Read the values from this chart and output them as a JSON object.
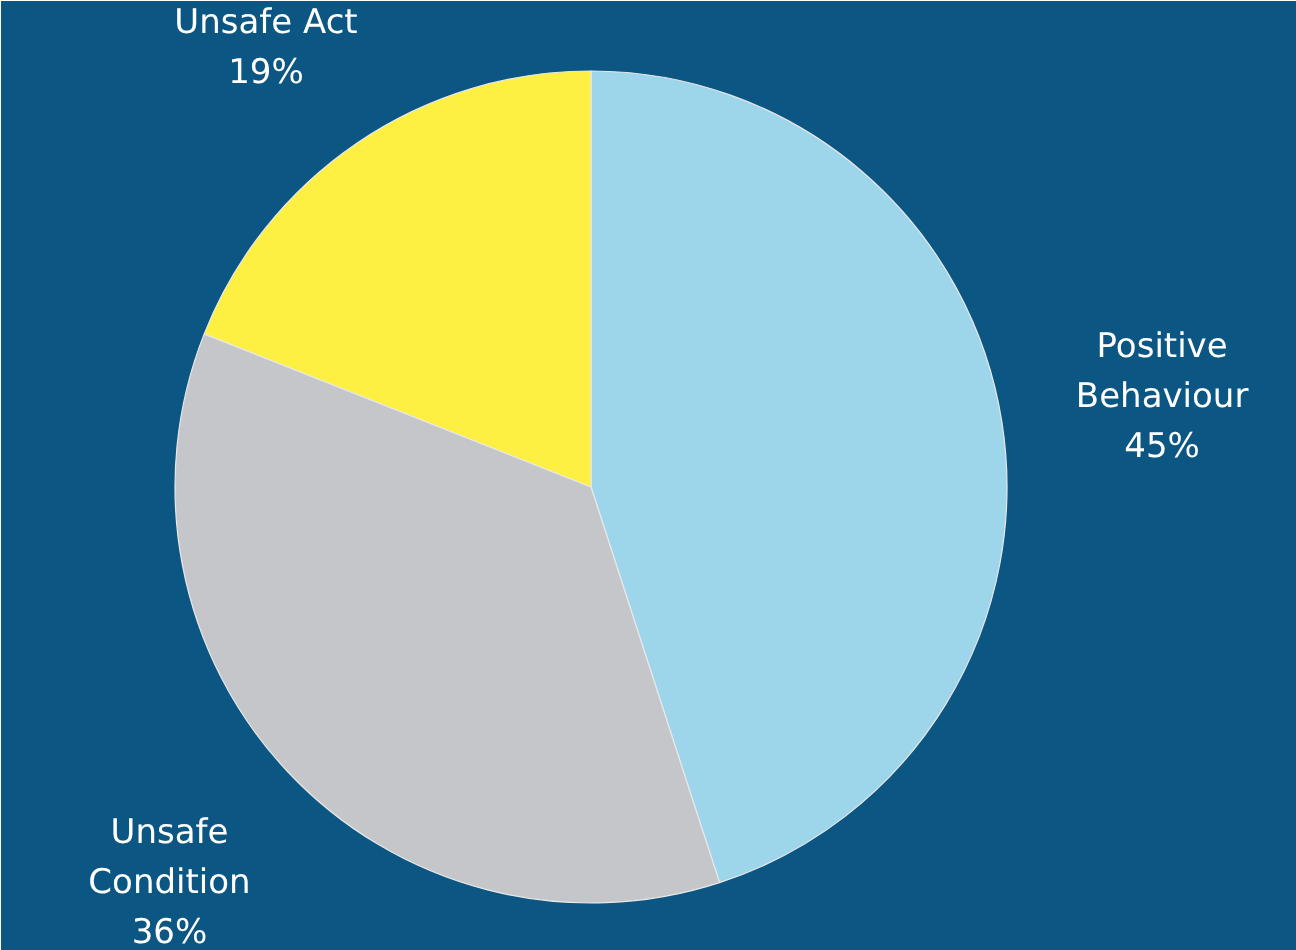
{
  "chart_data": {
    "type": "pie",
    "categories": [
      "Positive Behaviour",
      "Unsafe Condition",
      "Unsafe Act"
    ],
    "values": [
      45,
      36,
      19
    ],
    "colors": [
      "#9dd5ea",
      "#c5c6c9",
      "#fef043"
    ],
    "value_labels": [
      "45%",
      "36%",
      "19%"
    ]
  }
}
